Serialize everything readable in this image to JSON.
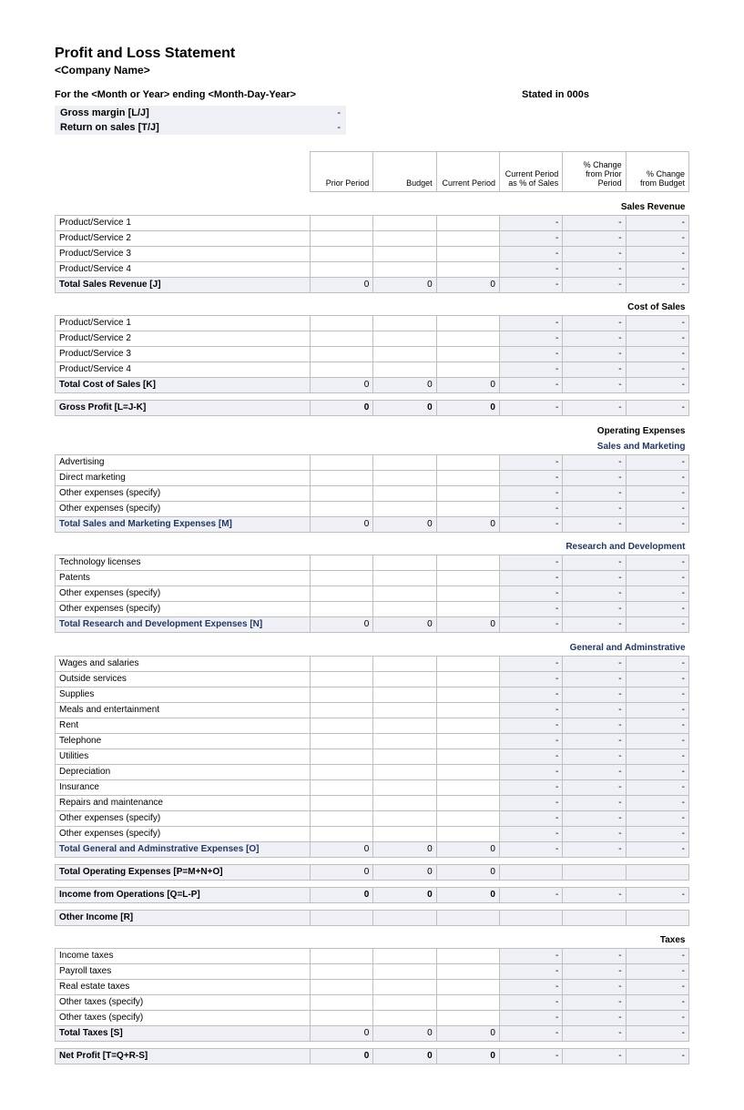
{
  "title": "Profit and Loss Statement",
  "company": "<Company Name>",
  "period_label": "For the <Month or Year> ending <Month-Day-Year>",
  "stated_in": "Stated in 000s",
  "kpi": {
    "gross_margin_label": "Gross margin  [L/J]",
    "gross_margin_val": "-",
    "ros_label": "Return on sales  [T/J]",
    "ros_val": "-"
  },
  "headers": {
    "c1": "Prior Period",
    "c2": "Budget",
    "c3": "Current Period",
    "c4": "Current Period as % of Sales",
    "c5": "% Change from Prior Period",
    "c6": "% Change from Budget"
  },
  "sections": {
    "sales_revenue": "Sales Revenue",
    "cost_of_sales": "Cost of Sales",
    "gross_profit": "Gross Profit  [L=J-K]",
    "op_exp": "Operating Expenses",
    "sm": "Sales and Marketing",
    "rd": "Research and Development",
    "ga": "General and Adminstrative",
    "taxes": "Taxes"
  },
  "rows": {
    "ps1": "Product/Service 1",
    "ps2": "Product/Service 2",
    "ps3": "Product/Service 3",
    "ps4": "Product/Service 4",
    "total_sales": "Total Sales Revenue  [J]",
    "total_cos": "Total Cost of Sales  [K]",
    "adv": "Advertising",
    "dm": "Direct marketing",
    "other_spec": "Other expenses (specify)",
    "total_sm": "Total Sales and Marketing Expenses  [M]",
    "tech_lic": "Technology licenses",
    "patents": "Patents",
    "total_rd": "Total Research and Development Expenses  [N]",
    "wages": "Wages and salaries",
    "outside": "Outside services",
    "supplies": "Supplies",
    "meals": "Meals and entertainment",
    "rent": "Rent",
    "telephone": "Telephone",
    "utilities": "Utilities",
    "depr": "Depreciation",
    "insurance": "Insurance",
    "repairs": "Repairs and maintenance",
    "total_ga": "Total General and Adminstrative Expenses  [O]",
    "total_opex": "Total Operating Expenses  [P=M+N+O]",
    "income_ops": "Income from Operations  [Q=L-P]",
    "other_income": "Other Income  [R]",
    "income_tax": "Income taxes",
    "payroll_tax": "Payroll taxes",
    "re_tax": "Real estate taxes",
    "other_tax_spec": "Other taxes (specify)",
    "total_taxes": "Total Taxes  [S]",
    "net_profit": "Net Profit  [T=Q+R-S]"
  },
  "vals": {
    "zero": "0",
    "dash": "-",
    "blank": ""
  },
  "colors": {
    "shade_bg": "#eef0f5",
    "border": "#bfbfbf",
    "navy": "#1f3864"
  }
}
